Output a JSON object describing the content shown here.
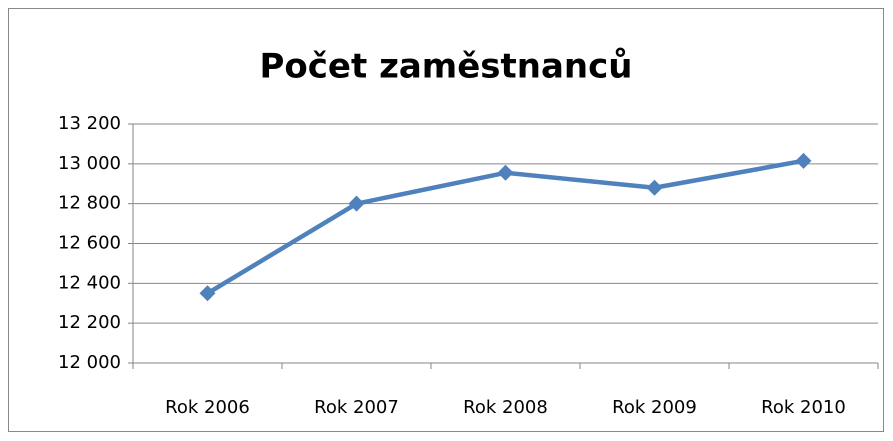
{
  "chart_data": {
    "type": "line",
    "title": "Počet zaměstnanců",
    "categories": [
      "Rok 2006",
      "Rok 2007",
      "Rok 2008",
      "Rok 2009",
      "Rok 2010"
    ],
    "series": [
      {
        "name": "Počet zaměstnanců",
        "color": "#4f81bd",
        "values": [
          12350,
          12800,
          12955,
          12880,
          13015
        ]
      }
    ],
    "ylim": [
      12000,
      13200
    ],
    "yticks": [
      {
        "value": 12000,
        "label": "12 000"
      },
      {
        "value": 12200,
        "label": "12 200"
      },
      {
        "value": 12400,
        "label": "12 400"
      },
      {
        "value": 12600,
        "label": "12 600"
      },
      {
        "value": 12800,
        "label": "12 800"
      },
      {
        "value": 13000,
        "label": "13 000"
      },
      {
        "value": 13200,
        "label": "13 200"
      }
    ],
    "grid": true
  }
}
